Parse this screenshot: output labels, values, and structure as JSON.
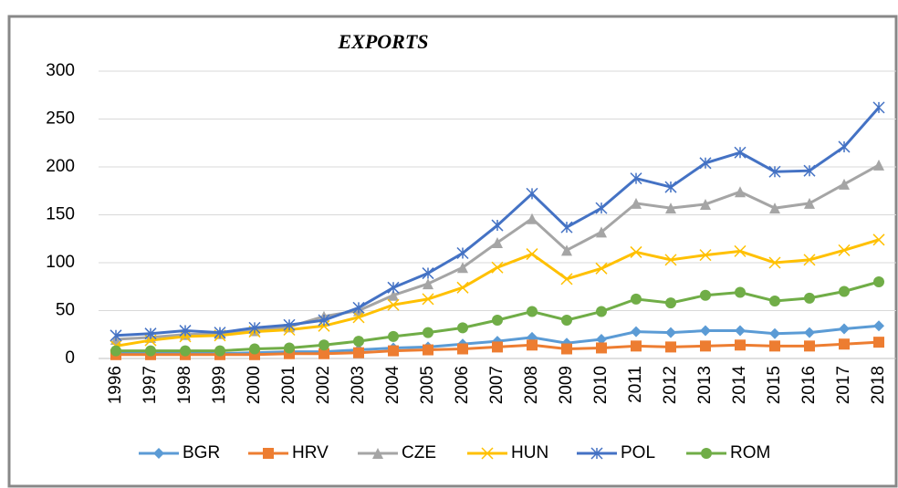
{
  "chart_data": {
    "type": "line",
    "title": "EXPORTS",
    "categories": [
      "1996",
      "1997",
      "1998",
      "1999",
      "2000",
      "2001",
      "2002",
      "2003",
      "2004",
      "2005",
      "2006",
      "2007",
      "2008",
      "2009",
      "2010",
      "2011",
      "2012",
      "2013",
      "2014",
      "2015",
      "2016",
      "2017",
      "2018"
    ],
    "series": [
      {
        "name": "BGR",
        "color": "#5b9bd5",
        "marker": "diamond",
        "values": [
          6,
          6,
          6,
          5,
          6,
          7,
          7,
          9,
          11,
          12,
          15,
          18,
          22,
          16,
          20,
          28,
          27,
          29,
          29,
          26,
          27,
          31,
          34
        ]
      },
      {
        "name": "HRV",
        "color": "#ed7d31",
        "marker": "square",
        "values": [
          4,
          4,
          4,
          4,
          4,
          5,
          5,
          6,
          8,
          9,
          10,
          12,
          14,
          10,
          11,
          13,
          12,
          13,
          14,
          13,
          13,
          15,
          17
        ]
      },
      {
        "name": "CZE",
        "color": "#a5a5a5",
        "marker": "triangle",
        "values": [
          20,
          22,
          25,
          26,
          29,
          33,
          44,
          50,
          66,
          78,
          95,
          121,
          146,
          113,
          132,
          162,
          157,
          161,
          174,
          157,
          162,
          182,
          202
        ]
      },
      {
        "name": "HUN",
        "color": "#ffc000",
        "marker": "x",
        "values": [
          13,
          19,
          23,
          24,
          28,
          30,
          34,
          43,
          56,
          62,
          74,
          95,
          109,
          83,
          94,
          111,
          103,
          108,
          112,
          100,
          103,
          113,
          124
        ]
      },
      {
        "name": "POL",
        "color": "#4472c4",
        "marker": "star",
        "values": [
          24,
          26,
          29,
          27,
          32,
          35,
          40,
          53,
          74,
          89,
          110,
          139,
          172,
          137,
          157,
          188,
          179,
          204,
          215,
          195,
          196,
          221,
          262
        ]
      },
      {
        "name": "ROM",
        "color": "#70ad47",
        "marker": "circle",
        "values": [
          8,
          8,
          8,
          8,
          10,
          11,
          14,
          18,
          23,
          27,
          32,
          40,
          49,
          40,
          49,
          62,
          58,
          66,
          69,
          60,
          63,
          70,
          80
        ]
      }
    ],
    "ylim": [
      0,
      300
    ],
    "yticks": [
      0,
      50,
      100,
      150,
      200,
      250,
      300
    ],
    "grid": true,
    "legend": "bottom"
  }
}
